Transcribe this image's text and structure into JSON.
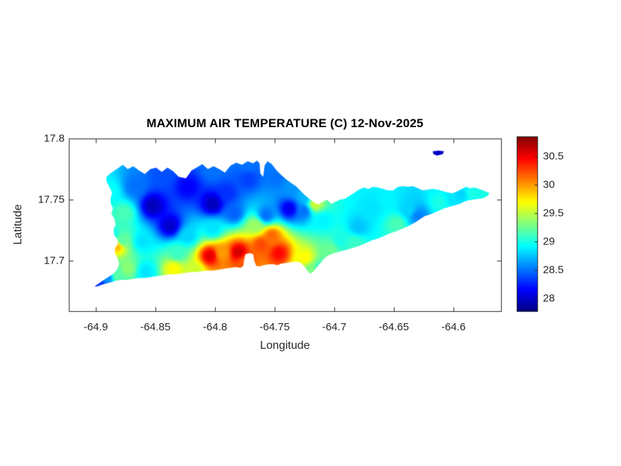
{
  "figure": {
    "background": "#ffffff",
    "axis_color": "#262626",
    "title_color": "#000000"
  },
  "chart_data": {
    "type": "heatmap",
    "title": "MAXIMUM AIR TEMPERATURE (C) 12-Nov-2025",
    "xlabel": "Longitude",
    "ylabel": "Latitude",
    "xlim": [
      -64.9226,
      -64.5601
    ],
    "ylim": [
      17.6584,
      17.8
    ],
    "xticks": [
      -64.9,
      -64.85,
      -64.8,
      -64.75,
      -64.7,
      -64.65,
      -64.6
    ],
    "xtick_labels": [
      "-64.9",
      "-64.85",
      "-64.8",
      "-64.75",
      "-64.7",
      "-64.65",
      "-64.6"
    ],
    "yticks": [
      17.7,
      17.75,
      17.8
    ],
    "ytick_labels": [
      "17.7",
      "17.75",
      "17.8"
    ],
    "grid": false,
    "clim": [
      27.775,
      30.85
    ],
    "colorbar": {
      "position": "right",
      "ticks": [
        28,
        28.5,
        29,
        29.5,
        30,
        30.5
      ],
      "tick_labels": [
        "28",
        "28.5",
        "29",
        "29.5",
        "30",
        "30.5"
      ]
    },
    "colormap": {
      "name": "jet",
      "stops": [
        [
          0.0,
          "#000080"
        ],
        [
          0.125,
          "#0000ff"
        ],
        [
          0.375,
          "#00ffff"
        ],
        [
          0.625,
          "#ffff00"
        ],
        [
          0.875,
          "#ff0000"
        ],
        [
          1.0,
          "#800000"
        ]
      ]
    },
    "island_outline": [
      [
        -64.9012,
        17.6787
      ],
      [
        -64.8923,
        17.6846
      ],
      [
        -64.8851,
        17.6892
      ],
      [
        -64.8821,
        17.6927
      ],
      [
        -64.8804,
        17.6968
      ],
      [
        -64.8816,
        17.7015
      ],
      [
        -64.8839,
        17.7061
      ],
      [
        -64.8839,
        17.7102
      ],
      [
        -64.8816,
        17.7131
      ],
      [
        -64.8816,
        17.7166
      ],
      [
        -64.8845,
        17.7207
      ],
      [
        -64.8851,
        17.7254
      ],
      [
        -64.8833,
        17.7295
      ],
      [
        -64.8845,
        17.7341
      ],
      [
        -64.8869,
        17.7382
      ],
      [
        -64.8857,
        17.7429
      ],
      [
        -64.8875,
        17.7469
      ],
      [
        -64.8875,
        17.7516
      ],
      [
        -64.8863,
        17.7557
      ],
      [
        -64.8887,
        17.7604
      ],
      [
        -64.8911,
        17.765
      ],
      [
        -64.8911,
        17.7685
      ],
      [
        -64.8869,
        17.772
      ],
      [
        -64.8816,
        17.7755
      ],
      [
        -64.8774,
        17.7784
      ],
      [
        -64.8732,
        17.7749
      ],
      [
        -64.8685,
        17.7773
      ],
      [
        -64.8637,
        17.7738
      ],
      [
        -64.8589,
        17.7709
      ],
      [
        -64.8542,
        17.7749
      ],
      [
        -64.8494,
        17.7761
      ],
      [
        -64.8447,
        17.7726
      ],
      [
        -64.8399,
        17.7761
      ],
      [
        -64.8351,
        17.7732
      ],
      [
        -64.8304,
        17.7685
      ],
      [
        -64.8244,
        17.7674
      ],
      [
        -64.8197,
        17.7738
      ],
      [
        -64.8155,
        17.7761
      ],
      [
        -64.8107,
        17.779
      ],
      [
        -64.806,
        17.7749
      ],
      [
        -64.8012,
        17.7773
      ],
      [
        -64.7965,
        17.7749
      ],
      [
        -64.7917,
        17.772
      ],
      [
        -64.7869,
        17.7778
      ],
      [
        -64.7822,
        17.7802
      ],
      [
        -64.7774,
        17.7784
      ],
      [
        -64.7727,
        17.7813
      ],
      [
        -64.7679,
        17.7796
      ],
      [
        -64.7649,
        17.7819
      ],
      [
        -64.7626,
        17.7796
      ],
      [
        -64.762,
        17.7714
      ],
      [
        -64.7596,
        17.7685
      ],
      [
        -64.7584,
        17.7778
      ],
      [
        -64.756,
        17.7813
      ],
      [
        -64.7524,
        17.779
      ],
      [
        -64.7483,
        17.7738
      ],
      [
        -64.7441,
        17.7697
      ],
      [
        -64.7399,
        17.7662
      ],
      [
        -64.7358,
        17.7633
      ],
      [
        -64.7322,
        17.7609
      ],
      [
        -64.7286,
        17.7574
      ],
      [
        -64.7251,
        17.7539
      ],
      [
        -64.7209,
        17.7504
      ],
      [
        -64.7167,
        17.7475
      ],
      [
        -64.7132,
        17.7458
      ],
      [
        -64.7096,
        17.7481
      ],
      [
        -64.706,
        17.7499
      ],
      [
        -64.7025,
        17.7464
      ],
      [
        -64.6989,
        17.7481
      ],
      [
        -64.6953,
        17.7499
      ],
      [
        -64.6912,
        17.7504
      ],
      [
        -64.6876,
        17.7528
      ],
      [
        -64.6846,
        17.7545
      ],
      [
        -64.6828,
        17.7557
      ],
      [
        -64.6793,
        17.758
      ],
      [
        -64.6751,
        17.7598
      ],
      [
        -64.6715,
        17.7586
      ],
      [
        -64.6673,
        17.7604
      ],
      [
        -64.6632,
        17.7598
      ],
      [
        -64.659,
        17.7586
      ],
      [
        -64.6549,
        17.7574
      ],
      [
        -64.6507,
        17.7574
      ],
      [
        -64.6465,
        17.7604
      ],
      [
        -64.6424,
        17.7609
      ],
      [
        -64.6382,
        17.7604
      ],
      [
        -64.634,
        17.7609
      ],
      [
        -64.6299,
        17.7592
      ],
      [
        -64.6257,
        17.7574
      ],
      [
        -64.6215,
        17.758
      ],
      [
        -64.6174,
        17.7586
      ],
      [
        -64.6132,
        17.758
      ],
      [
        -64.609,
        17.7569
      ],
      [
        -64.6049,
        17.7557
      ],
      [
        -64.6007,
        17.7551
      ],
      [
        -64.5965,
        17.7569
      ],
      [
        -64.593,
        17.7586
      ],
      [
        -64.5894,
        17.7604
      ],
      [
        -64.5858,
        17.7592
      ],
      [
        -64.5823,
        17.7598
      ],
      [
        -64.5787,
        17.7586
      ],
      [
        -64.5751,
        17.7574
      ],
      [
        -64.5722,
        17.7563
      ],
      [
        -64.5698,
        17.7551
      ],
      [
        -64.5716,
        17.7528
      ],
      [
        -64.5751,
        17.751
      ],
      [
        -64.5793,
        17.7504
      ],
      [
        -64.5835,
        17.7499
      ],
      [
        -64.5876,
        17.7493
      ],
      [
        -64.5912,
        17.7481
      ],
      [
        -64.5948,
        17.7464
      ],
      [
        -64.5989,
        17.7452
      ],
      [
        -64.6031,
        17.744
      ],
      [
        -64.6073,
        17.7429
      ],
      [
        -64.6114,
        17.7411
      ],
      [
        -64.6156,
        17.7394
      ],
      [
        -64.6198,
        17.7376
      ],
      [
        -64.6239,
        17.7365
      ],
      [
        -64.6275,
        17.7341
      ],
      [
        -64.6311,
        17.7318
      ],
      [
        -64.6352,
        17.7295
      ],
      [
        -64.6388,
        17.7277
      ],
      [
        -64.643,
        17.726
      ],
      [
        -64.6471,
        17.7242
      ],
      [
        -64.6513,
        17.723
      ],
      [
        -64.6555,
        17.7213
      ],
      [
        -64.6596,
        17.7195
      ],
      [
        -64.6638,
        17.7178
      ],
      [
        -64.6679,
        17.7166
      ],
      [
        -64.6721,
        17.7149
      ],
      [
        -64.6763,
        17.7131
      ],
      [
        -64.6804,
        17.7114
      ],
      [
        -64.6846,
        17.7102
      ],
      [
        -64.6888,
        17.709
      ],
      [
        -64.6929,
        17.7079
      ],
      [
        -64.6971,
        17.7067
      ],
      [
        -64.7013,
        17.7056
      ],
      [
        -64.7054,
        17.7038
      ],
      [
        -64.7084,
        17.7015
      ],
      [
        -64.7114,
        17.698
      ],
      [
        -64.7144,
        17.6945
      ],
      [
        -64.7179,
        17.6904
      ],
      [
        -64.7203,
        17.6892
      ],
      [
        -64.7227,
        17.6916
      ],
      [
        -64.7251,
        17.6951
      ],
      [
        -64.728,
        17.698
      ],
      [
        -64.7316,
        17.6991
      ],
      [
        -64.7358,
        17.6986
      ],
      [
        -64.7399,
        17.698
      ],
      [
        -64.7441,
        17.6974
      ],
      [
        -64.7477,
        17.6962
      ],
      [
        -64.7512,
        17.6968
      ],
      [
        -64.7548,
        17.6968
      ],
      [
        -64.759,
        17.6962
      ],
      [
        -64.7626,
        17.6951
      ],
      [
        -64.7655,
        17.6956
      ],
      [
        -64.7673,
        17.7003
      ],
      [
        -64.7679,
        17.705
      ],
      [
        -64.7709,
        17.7061
      ],
      [
        -64.7745,
        17.705
      ],
      [
        -64.7756,
        17.7003
      ],
      [
        -64.7762,
        17.6956
      ],
      [
        -64.7786,
        17.6939
      ],
      [
        -64.7828,
        17.6945
      ],
      [
        -64.7869,
        17.6939
      ],
      [
        -64.7911,
        17.6933
      ],
      [
        -64.7953,
        17.6927
      ],
      [
        -64.7994,
        17.6921
      ],
      [
        -64.8036,
        17.6916
      ],
      [
        -64.8078,
        17.6916
      ],
      [
        -64.8119,
        17.691
      ],
      [
        -64.8161,
        17.6904
      ],
      [
        -64.8203,
        17.6904
      ],
      [
        -64.8244,
        17.6898
      ],
      [
        -64.8286,
        17.6892
      ],
      [
        -64.8328,
        17.6887
      ],
      [
        -64.8369,
        17.6887
      ],
      [
        -64.8411,
        17.6881
      ],
      [
        -64.8453,
        17.6875
      ],
      [
        -64.8494,
        17.6869
      ],
      [
        -64.8536,
        17.6863
      ],
      [
        -64.8578,
        17.6857
      ],
      [
        -64.8619,
        17.6857
      ],
      [
        -64.8661,
        17.6852
      ],
      [
        -64.8702,
        17.6846
      ],
      [
        -64.8744,
        17.684
      ],
      [
        -64.8786,
        17.684
      ],
      [
        -64.8827,
        17.6834
      ],
      [
        -64.8869,
        17.6822
      ],
      [
        -64.8911,
        17.6811
      ],
      [
        -64.8952,
        17.6799
      ],
      [
        -64.8988,
        17.6787
      ]
    ],
    "buck_island_outline": [
      [
        -64.6174,
        17.7895
      ],
      [
        -64.6126,
        17.7901
      ],
      [
        -64.6079,
        17.7895
      ],
      [
        -64.609,
        17.7872
      ],
      [
        -64.6138,
        17.786
      ],
      [
        -64.6168,
        17.7872
      ]
    ],
    "samples": [
      [
        -64.8524,
        17.7446,
        27.95
      ],
      [
        -64.8375,
        17.7283,
        28.0
      ],
      [
        -64.8018,
        17.7464,
        27.95
      ],
      [
        -64.8226,
        17.7604,
        28.15
      ],
      [
        -64.772,
        17.7668,
        28.35
      ],
      [
        -64.7375,
        17.7423,
        28.1
      ],
      [
        -64.6126,
        17.7883,
        28.0
      ],
      [
        -64.8435,
        17.7709,
        28.4
      ],
      [
        -64.8018,
        17.7738,
        28.5
      ],
      [
        -64.772,
        17.7784,
        28.5
      ],
      [
        -64.8673,
        17.7604,
        28.5
      ],
      [
        -64.8881,
        17.7563,
        28.95
      ],
      [
        -64.8762,
        17.7388,
        29.15
      ],
      [
        -64.8851,
        17.7213,
        29.0
      ],
      [
        -64.8613,
        17.7155,
        28.85
      ],
      [
        -64.8226,
        17.7201,
        28.8
      ],
      [
        -64.8018,
        17.726,
        28.85
      ],
      [
        -64.7839,
        17.7388,
        28.45
      ],
      [
        -64.7571,
        17.737,
        28.5
      ],
      [
        -64.7899,
        17.7551,
        28.3
      ],
      [
        -64.8042,
        17.7038,
        30.55
      ],
      [
        -64.7804,
        17.7067,
        30.6
      ],
      [
        -64.7464,
        17.7061,
        30.45
      ],
      [
        -64.7524,
        17.7201,
        30.15
      ],
      [
        -64.7613,
        17.7131,
        30.25
      ],
      [
        -64.7661,
        17.7283,
        29.4
      ],
      [
        -64.7941,
        17.7061,
        30.0
      ],
      [
        -64.775,
        17.6991,
        30.2
      ],
      [
        -64.8816,
        17.7114,
        29.9
      ],
      [
        -64.878,
        17.7155,
        29.2
      ],
      [
        -64.8821,
        17.6869,
        29.2
      ],
      [
        -64.8732,
        17.6933,
        29.35
      ],
      [
        -64.8583,
        17.691,
        28.85
      ],
      [
        -64.8345,
        17.6933,
        29.7
      ],
      [
        -64.8167,
        17.6916,
        29.55
      ],
      [
        -64.8315,
        17.7056,
        29.1
      ],
      [
        -64.897,
        17.6811,
        28.3
      ],
      [
        -64.8899,
        17.6857,
        28.6
      ],
      [
        -64.7244,
        17.7021,
        29.7
      ],
      [
        -64.7196,
        17.6921,
        29.3
      ],
      [
        -64.7114,
        17.6921,
        29.0
      ],
      [
        -64.7036,
        17.7085,
        29.25
      ],
      [
        -64.6828,
        17.7143,
        29.1
      ],
      [
        -64.6946,
        17.7166,
        29.0
      ],
      [
        -64.7161,
        17.7464,
        29.55
      ],
      [
        -64.7096,
        17.733,
        28.9
      ],
      [
        -64.6798,
        17.7271,
        28.75
      ],
      [
        -64.6679,
        17.7434,
        28.85
      ],
      [
        -64.6471,
        17.73,
        29.15
      ],
      [
        -64.6293,
        17.7359,
        28.55
      ],
      [
        -64.6382,
        17.7417,
        28.8
      ],
      [
        -64.6114,
        17.7475,
        29.0
      ],
      [
        -64.5995,
        17.7504,
        28.85
      ],
      [
        -64.5935,
        17.7539,
        28.8
      ],
      [
        -64.5846,
        17.7551,
        29.0
      ],
      [
        -64.5728,
        17.7545,
        29.0
      ],
      [
        -64.656,
        17.7504,
        28.9
      ],
      [
        -64.7363,
        17.7592,
        28.6
      ],
      [
        -64.7244,
        17.7522,
        28.7
      ],
      [
        -64.7256,
        17.7405,
        28.5
      ],
      [
        -64.7483,
        17.7679,
        28.5
      ]
    ]
  }
}
